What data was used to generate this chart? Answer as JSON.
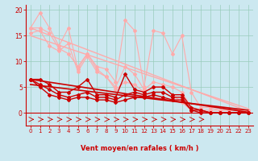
{
  "bg_color": "#cce8f0",
  "xlabel": "Vent moyen/en rafales ( km/h )",
  "xlim": [
    -0.5,
    23.5
  ],
  "ylim": [
    -2.5,
    21
  ],
  "yticks": [
    0,
    5,
    10,
    15,
    20
  ],
  "xticks": [
    0,
    1,
    2,
    3,
    4,
    5,
    6,
    7,
    8,
    9,
    10,
    11,
    12,
    13,
    14,
    15,
    16,
    17,
    18,
    19,
    20,
    21,
    22,
    23
  ],
  "grid_color": "#99ccbb",
  "lines_pink": [
    {
      "x": [
        0,
        1,
        2,
        3,
        4,
        5,
        6,
        7,
        8,
        9,
        10,
        11,
        12,
        13,
        14,
        15,
        16,
        17,
        18,
        19,
        20,
        21,
        22,
        23
      ],
      "y": [
        16.5,
        19.5,
        16.5,
        13,
        16.5,
        8.5,
        11.5,
        9,
        8.5,
        6,
        18,
        16,
        5,
        16,
        15.5,
        11.5,
        15,
        4,
        1,
        1,
        0.5,
        0.5,
        0.5,
        0.5
      ]
    },
    {
      "x": [
        0,
        1,
        2,
        3,
        4,
        5,
        6,
        7,
        8,
        9,
        10,
        11,
        12,
        13,
        14,
        15,
        16,
        17,
        18,
        19,
        20,
        21,
        22,
        23
      ],
      "y": [
        15.5,
        16,
        13,
        12,
        13.5,
        8,
        11,
        8,
        7,
        5,
        9,
        7.5,
        4.5,
        6,
        5.5,
        5,
        4,
        1,
        0.5,
        0.5,
        0.5,
        0.5,
        0.5,
        0.5
      ]
    },
    {
      "x": [
        0,
        1,
        2,
        3,
        4,
        5,
        6,
        7,
        8,
        9,
        10,
        11,
        12,
        13,
        14,
        15,
        16,
        17,
        18,
        19,
        20,
        21,
        22,
        23
      ],
      "y": [
        16.5,
        16.5,
        15.5,
        12.5,
        11.5,
        9,
        11.5,
        8.5,
        7,
        4.5,
        6,
        5.5,
        4,
        5,
        5,
        3.5,
        2,
        0.5,
        0.5,
        0,
        0,
        0,
        0,
        0
      ]
    }
  ],
  "lines_pink_trend": [
    {
      "x": [
        0,
        23
      ],
      "y": [
        16.5,
        0.3
      ]
    },
    {
      "x": [
        0,
        23
      ],
      "y": [
        15.0,
        0.8
      ]
    }
  ],
  "lines_red": [
    {
      "x": [
        0,
        1,
        2,
        3,
        4,
        5,
        6,
        7,
        8,
        9,
        10,
        11,
        12,
        13,
        14,
        15,
        16,
        17,
        18,
        19,
        20,
        21,
        22,
        23
      ],
      "y": [
        6.5,
        6.5,
        5.5,
        4,
        4,
        5,
        6.5,
        3.5,
        3.5,
        3,
        7.5,
        4.5,
        4,
        5,
        5,
        3.5,
        3.5,
        1,
        0.5,
        0,
        0,
        0,
        0,
        0
      ]
    },
    {
      "x": [
        0,
        1,
        2,
        3,
        4,
        5,
        6,
        7,
        8,
        9,
        10,
        11,
        12,
        13,
        14,
        15,
        16,
        17,
        18,
        19,
        20,
        21,
        22,
        23
      ],
      "y": [
        6.5,
        5.5,
        4.5,
        3.5,
        3,
        3.5,
        4,
        3,
        3,
        2.5,
        3.5,
        4,
        3.5,
        4,
        4,
        3,
        3,
        0.5,
        0.5,
        0,
        0,
        0,
        0,
        0
      ]
    },
    {
      "x": [
        0,
        1,
        2,
        3,
        4,
        5,
        6,
        7,
        8,
        9,
        10,
        11,
        12,
        13,
        14,
        15,
        16,
        17,
        18,
        19,
        20,
        21,
        22,
        23
      ],
      "y": [
        6.5,
        5,
        3.5,
        3,
        2.5,
        3,
        3,
        2.5,
        2.5,
        2,
        2.5,
        3,
        3,
        3.5,
        3,
        2.5,
        2.5,
        0.5,
        0,
        0,
        0,
        0,
        0,
        0
      ]
    }
  ],
  "lines_red_trend": [
    {
      "x": [
        0,
        23
      ],
      "y": [
        6.5,
        0.1
      ]
    },
    {
      "x": [
        0,
        23
      ],
      "y": [
        5.5,
        0.5
      ]
    }
  ],
  "pink_color": "#ffaaaa",
  "red_color": "#cc0000",
  "axis_color": "#cc0000",
  "tick_color": "#cc0000",
  "label_color": "#cc0000"
}
